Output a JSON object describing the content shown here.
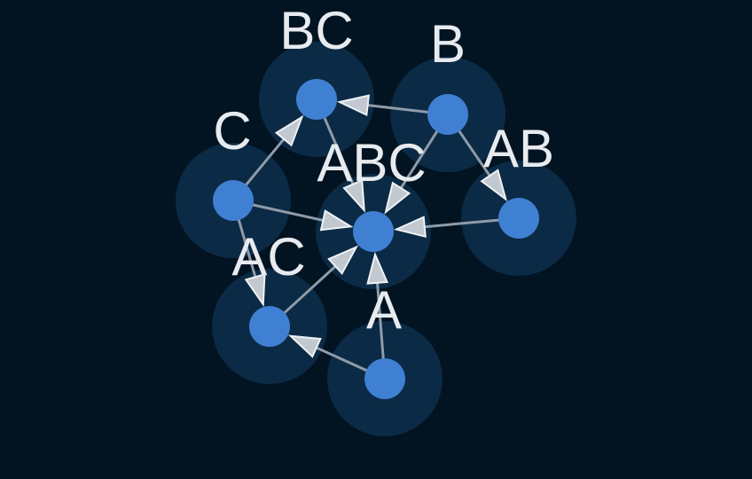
{
  "diagram": {
    "type": "directed-graph",
    "colors": {
      "background": "#021321",
      "node": "#3f80d2",
      "halo": "#0b2a45",
      "edge": "#8f9ba8",
      "arrowhead": "#c2c8cf",
      "label": "#e7ebef"
    },
    "nodes": [
      {
        "id": "A",
        "label": "A"
      },
      {
        "id": "B",
        "label": "B"
      },
      {
        "id": "C",
        "label": "C"
      },
      {
        "id": "AB",
        "label": "AB"
      },
      {
        "id": "AC",
        "label": "AC"
      },
      {
        "id": "BC",
        "label": "BC"
      },
      {
        "id": "ABC",
        "label": "ABC"
      }
    ],
    "edges": [
      {
        "from": "A",
        "to": "AC"
      },
      {
        "from": "A",
        "to": "ABC"
      },
      {
        "from": "B",
        "to": "BC"
      },
      {
        "from": "B",
        "to": "AB"
      },
      {
        "from": "B",
        "to": "ABC"
      },
      {
        "from": "C",
        "to": "BC"
      },
      {
        "from": "C",
        "to": "AC"
      },
      {
        "from": "C",
        "to": "ABC"
      },
      {
        "from": "AB",
        "to": "ABC"
      },
      {
        "from": "AC",
        "to": "ABC"
      },
      {
        "from": "BC",
        "to": "ABC"
      }
    ]
  }
}
